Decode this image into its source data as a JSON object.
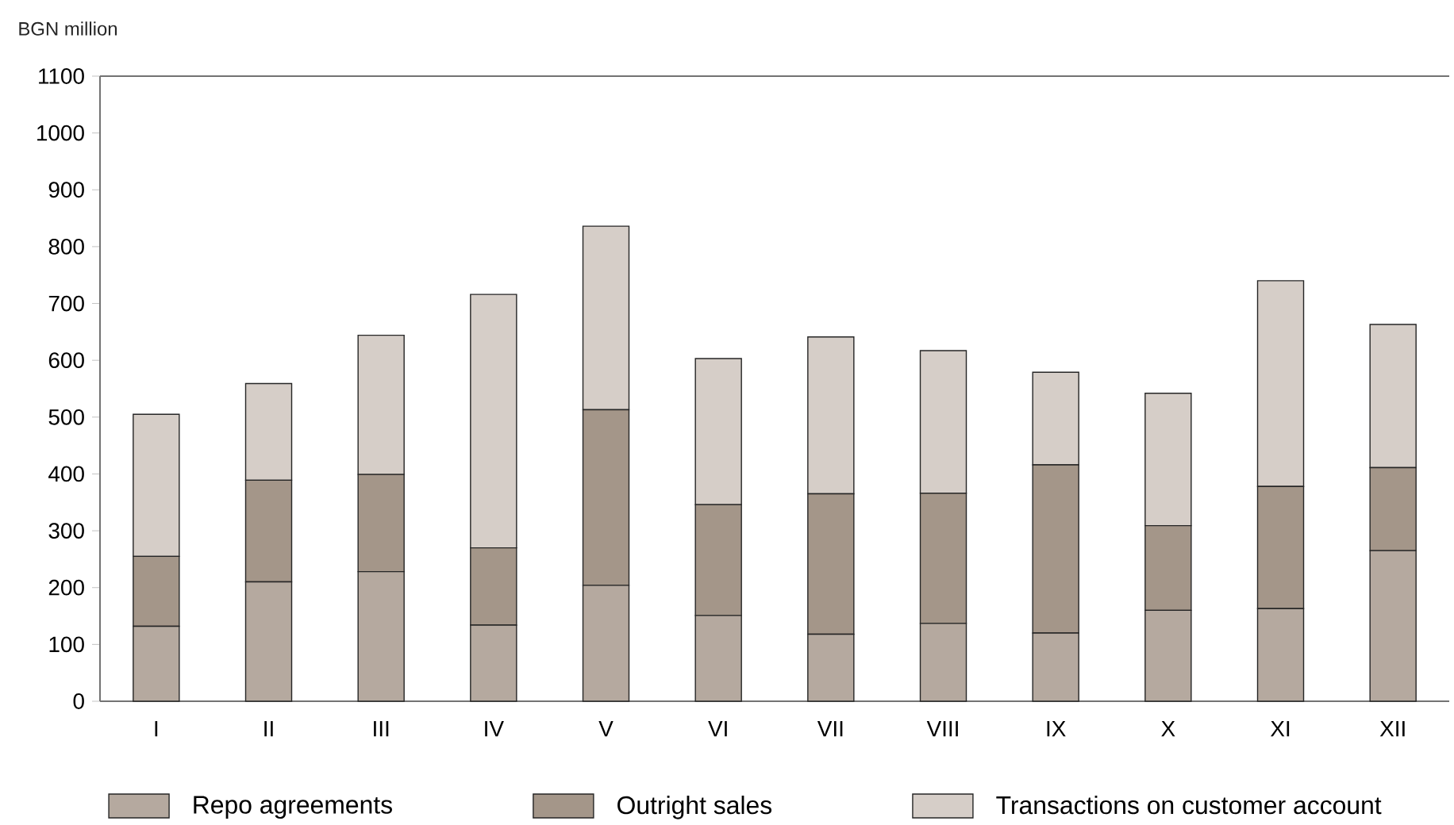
{
  "chart_data": {
    "type": "bar",
    "stacked": true,
    "ylabel": "BGN million",
    "categories": [
      "I",
      "II",
      "III",
      "IV",
      "V",
      "VI",
      "VII",
      "VIII",
      "IX",
      "X",
      "XI",
      "XII"
    ],
    "series": [
      {
        "name": "Repo agreements",
        "color": "#b5a99f",
        "values": [
          132,
          210,
          228,
          134,
          204,
          151,
          118,
          137,
          120,
          160,
          163,
          265
        ]
      },
      {
        "name": "Outright sales",
        "color": "#a49689",
        "values": [
          123,
          179,
          171,
          136,
          309,
          195,
          247,
          229,
          296,
          149,
          215,
          146
        ]
      },
      {
        "name": "Transactions on customer account",
        "color": "#d6cec8",
        "values": [
          250,
          170,
          245,
          446,
          323,
          257,
          276,
          251,
          163,
          233,
          362,
          252
        ]
      }
    ],
    "ylim": [
      0,
      1100
    ],
    "yticks": [
      0,
      100,
      200,
      300,
      400,
      500,
      600,
      700,
      800,
      900,
      1000,
      1100
    ],
    "legend": "bottom"
  }
}
